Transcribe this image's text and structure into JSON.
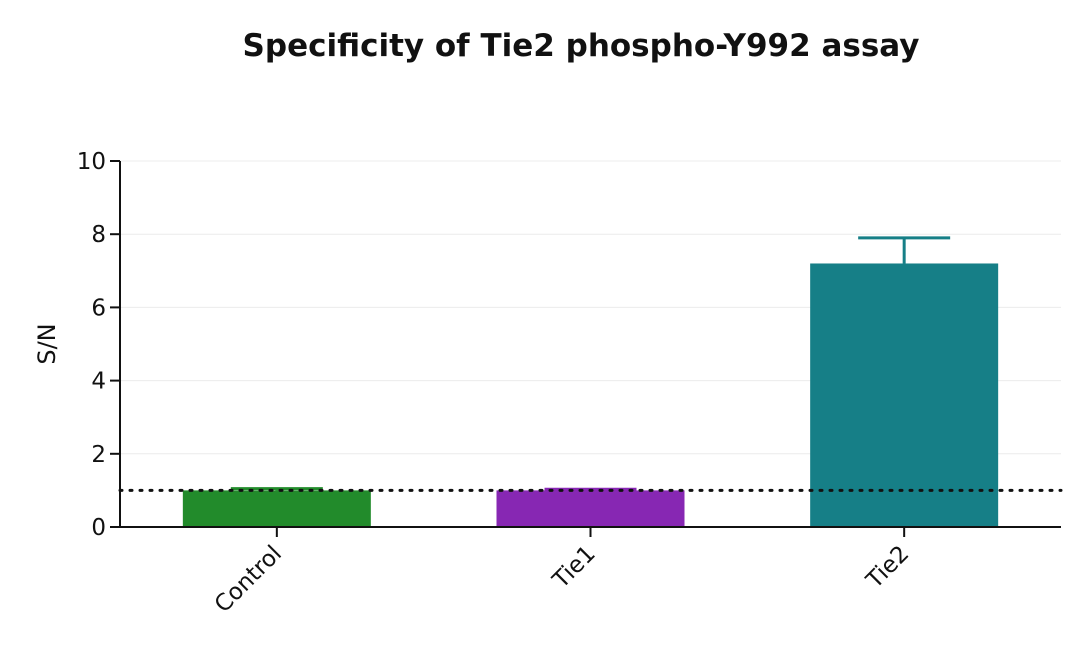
{
  "chart_data": {
    "type": "bar",
    "title": "Specificity of Tie2 phospho-Y992 assay",
    "xlabel": "",
    "ylabel": "S/N",
    "ylim": [
      0,
      10
    ],
    "yticks": [
      0,
      2,
      4,
      6,
      8,
      10
    ],
    "categories": [
      "Control",
      "Tie1",
      "Tie2"
    ],
    "values": [
      1.0,
      1.0,
      7.2
    ],
    "errors": [
      0.05,
      0.03,
      0.7
    ],
    "colors": [
      "#228b2b",
      "#8727b3",
      "#167f87"
    ],
    "reference_line": {
      "y": 1,
      "style": "dotted"
    },
    "grid": true,
    "legend": "none"
  }
}
